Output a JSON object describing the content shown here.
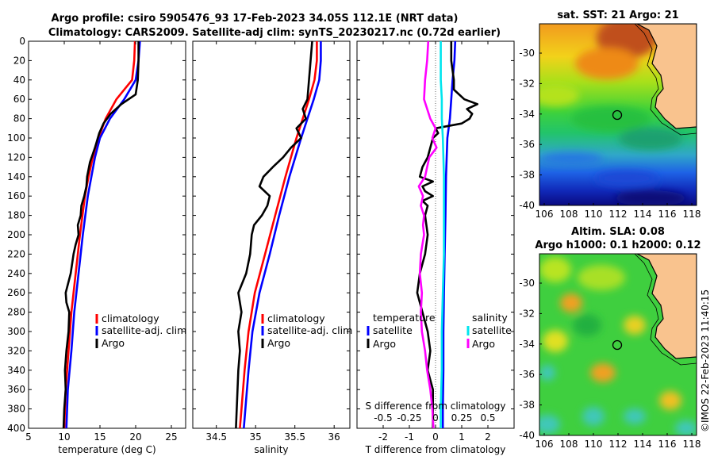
{
  "header": {
    "line1": "Argo profile: csiro 5905476_93 17-Feb-2023 34.05S 112.1E (NRT data)",
    "line2": "Climatology: CARS2009. Satellite-adj clim: synTS_20230217.nc (0.72d earlier)"
  },
  "colors": {
    "climatology": "#ff0000",
    "satellite": "#0000ff",
    "argo": "#000000",
    "sal_satellite": "#00e5ee",
    "sal_argo": "#ff00ff",
    "land": "#f9c38e"
  },
  "chart_data": [
    {
      "type": "line",
      "id": "temperature",
      "xlabel": "temperature (deg C)",
      "xlim": [
        5,
        27
      ],
      "xticks": [
        "5",
        "10",
        "15",
        "20",
        "25"
      ],
      "ylim": [
        0,
        400
      ],
      "yticks": [
        "0",
        "20",
        "40",
        "60",
        "80",
        "100",
        "120",
        "140",
        "160",
        "180",
        "200",
        "220",
        "240",
        "260",
        "280",
        "300",
        "320",
        "340",
        "360",
        "380",
        "400"
      ],
      "legend": [
        "climatology",
        "satellite-adj. clim",
        "Argo"
      ],
      "series": [
        {
          "name": "climatology",
          "color": "#ff0000",
          "depth": [
            0,
            20,
            40,
            60,
            80,
            100,
            120,
            140,
            160,
            200,
            240,
            280,
            320,
            360,
            400
          ],
          "values": [
            19.9,
            19.8,
            19.5,
            17.3,
            15.8,
            14.8,
            14.0,
            13.4,
            12.9,
            12.2,
            11.6,
            11.0,
            10.6,
            10.2,
            10.0
          ]
        },
        {
          "name": "satellite-adj. clim",
          "color": "#0000ff",
          "depth": [
            0,
            20,
            40,
            60,
            80,
            100,
            120,
            140,
            160,
            200,
            240,
            280,
            320,
            360,
            400
          ],
          "values": [
            20.6,
            20.4,
            20.0,
            18.4,
            16.4,
            15.0,
            14.3,
            13.8,
            13.3,
            12.6,
            12.0,
            11.4,
            11.0,
            10.5,
            10.3
          ]
        },
        {
          "name": "Argo",
          "color": "#000000",
          "depth": [
            0,
            20,
            40,
            55,
            65,
            75,
            85,
            95,
            110,
            125,
            140,
            150,
            160,
            170,
            180,
            190,
            200,
            210,
            220,
            240,
            260,
            270,
            280,
            300,
            320,
            340,
            360,
            380,
            400
          ],
          "values": [
            20.4,
            20.4,
            20.3,
            20.0,
            18.0,
            16.5,
            15.5,
            14.9,
            14.3,
            13.6,
            13.2,
            13.1,
            12.8,
            12.4,
            12.3,
            11.9,
            12.0,
            11.6,
            11.3,
            10.9,
            10.2,
            10.3,
            10.7,
            10.6,
            10.3,
            10.1,
            10.2,
            10.0,
            9.9
          ]
        }
      ]
    },
    {
      "type": "line",
      "id": "salinity",
      "xlabel": "salinity",
      "xlim": [
        34.2,
        36.2
      ],
      "xticks": [
        "34.5",
        "35",
        "35.5",
        "36"
      ],
      "ylim": [
        0,
        400
      ],
      "legend": [
        "climatology",
        "satellite-adj. clim",
        "Argo"
      ],
      "series": [
        {
          "name": "climatology",
          "color": "#ff0000",
          "depth": [
            0,
            20,
            40,
            60,
            80,
            100,
            140,
            180,
            220,
            260,
            300,
            340,
            380,
            400
          ],
          "values": [
            35.78,
            35.78,
            35.75,
            35.68,
            35.6,
            35.52,
            35.38,
            35.25,
            35.12,
            34.99,
            34.91,
            34.86,
            34.82,
            34.8
          ]
        },
        {
          "name": "satellite-adj. clim",
          "color": "#0000ff",
          "depth": [
            0,
            20,
            40,
            60,
            80,
            100,
            140,
            180,
            220,
            260,
            300,
            340,
            380,
            400
          ],
          "values": [
            35.83,
            35.83,
            35.81,
            35.74,
            35.66,
            35.58,
            35.43,
            35.3,
            35.18,
            35.05,
            34.96,
            34.91,
            34.87,
            34.85
          ]
        },
        {
          "name": "Argo",
          "color": "#000000",
          "depth": [
            0,
            20,
            40,
            60,
            70,
            80,
            90,
            100,
            110,
            120,
            130,
            140,
            150,
            160,
            170,
            180,
            190,
            200,
            220,
            240,
            260,
            270,
            280,
            300,
            320,
            340,
            360,
            380,
            400
          ],
          "values": [
            35.72,
            35.7,
            35.68,
            35.66,
            35.6,
            35.64,
            35.52,
            35.58,
            35.45,
            35.35,
            35.22,
            35.1,
            35.05,
            35.18,
            35.15,
            35.08,
            34.98,
            34.95,
            34.93,
            34.88,
            34.78,
            34.8,
            34.82,
            34.78,
            34.8,
            34.78,
            34.77,
            34.76,
            34.75
          ]
        }
      ]
    },
    {
      "type": "line",
      "id": "difference",
      "xlabel": "T difference from climatology",
      "xlim": [
        -3,
        3
      ],
      "xticks": [
        "-2",
        "-1",
        "0",
        "1",
        "2"
      ],
      "top_xlabel": "S difference from climatology",
      "top_xticks": [
        "-0.5",
        "-0.25",
        "0",
        "0.25",
        "0.5"
      ],
      "ylim": [
        0,
        400
      ],
      "legend_temperature_title": "temperature",
      "legend_salinity_title": "salinity",
      "legend_temperature": [
        "satellite",
        "Argo"
      ],
      "legend_salinity": [
        "satellite",
        "Argo"
      ],
      "series": [
        {
          "name": "temperature satellite",
          "color": "#0000ff",
          "depth": [
            0,
            20,
            40,
            60,
            80,
            100,
            140,
            180,
            220,
            260,
            300,
            340,
            380,
            400
          ],
          "values": [
            0.75,
            0.72,
            0.65,
            0.6,
            0.55,
            0.45,
            0.4,
            0.38,
            0.35,
            0.32,
            0.3,
            0.3,
            0.28,
            0.28
          ]
        },
        {
          "name": "temperature Argo",
          "color": "#000000",
          "depth": [
            0,
            20,
            40,
            50,
            60,
            65,
            70,
            75,
            80,
            85,
            90,
            95,
            100,
            110,
            120,
            130,
            140,
            145,
            150,
            155,
            160,
            165,
            170,
            180,
            200,
            220,
            240,
            260,
            280,
            300,
            320,
            340,
            360,
            380,
            400
          ],
          "values": [
            0.6,
            0.6,
            0.7,
            0.7,
            1.1,
            1.6,
            1.2,
            1.4,
            1.3,
            1.0,
            0.0,
            0.1,
            -0.1,
            -0.2,
            -0.3,
            -0.5,
            -0.6,
            -0.1,
            -0.5,
            -0.4,
            -0.1,
            -0.5,
            -0.3,
            -0.4,
            -0.3,
            -0.4,
            -0.6,
            -0.7,
            -0.5,
            -0.3,
            -0.2,
            -0.3,
            -0.1,
            -0.1,
            -0.1
          ]
        },
        {
          "name": "salinity satellite",
          "color": "#00e5ee",
          "depth": [
            0,
            20,
            40,
            60,
            80,
            100,
            140,
            180,
            220,
            260,
            300,
            340,
            380,
            400
          ],
          "values": [
            0.05,
            0.05,
            0.05,
            0.06,
            0.06,
            0.07,
            0.08,
            0.08,
            0.08,
            0.07,
            0.06,
            0.06,
            0.05,
            0.05
          ]
        },
        {
          "name": "salinity Argo",
          "color": "#ff00ff",
          "depth": [
            0,
            20,
            40,
            60,
            80,
            90,
            100,
            110,
            120,
            130,
            140,
            150,
            160,
            170,
            180,
            190,
            200,
            220,
            240,
            260,
            280,
            300,
            320,
            340,
            360,
            380,
            400
          ],
          "values": [
            -0.07,
            -0.08,
            -0.1,
            -0.11,
            -0.05,
            0.0,
            -0.03,
            0.01,
            -0.06,
            -0.08,
            -0.1,
            -0.16,
            -0.12,
            -0.14,
            -0.11,
            -0.12,
            -0.11,
            -0.14,
            -0.15,
            -0.13,
            -0.14,
            -0.13,
            -0.1,
            -0.08,
            -0.05,
            -0.03,
            -0.02
          ]
        }
      ]
    }
  ],
  "maps": {
    "sst": {
      "title": "sat. SST: 21 Argo: 21",
      "xticks": [
        "106",
        "108",
        "110",
        "112",
        "114",
        "116",
        "118"
      ],
      "yticks": [
        "-30",
        "-32",
        "-34",
        "-36",
        "-38",
        "-40"
      ]
    },
    "sla": {
      "title1": "Altim. SLA: 0.08",
      "title2": "Argo h1000: 0.1 h2000: 0.12",
      "xticks": [
        "106",
        "108",
        "110",
        "112",
        "114",
        "116",
        "118"
      ],
      "yticks": [
        "-30",
        "-32",
        "-34",
        "-36",
        "-38",
        "-40"
      ]
    }
  },
  "footer": {
    "credit": "©IMOS 22-Feb-2023 11:40:15"
  }
}
